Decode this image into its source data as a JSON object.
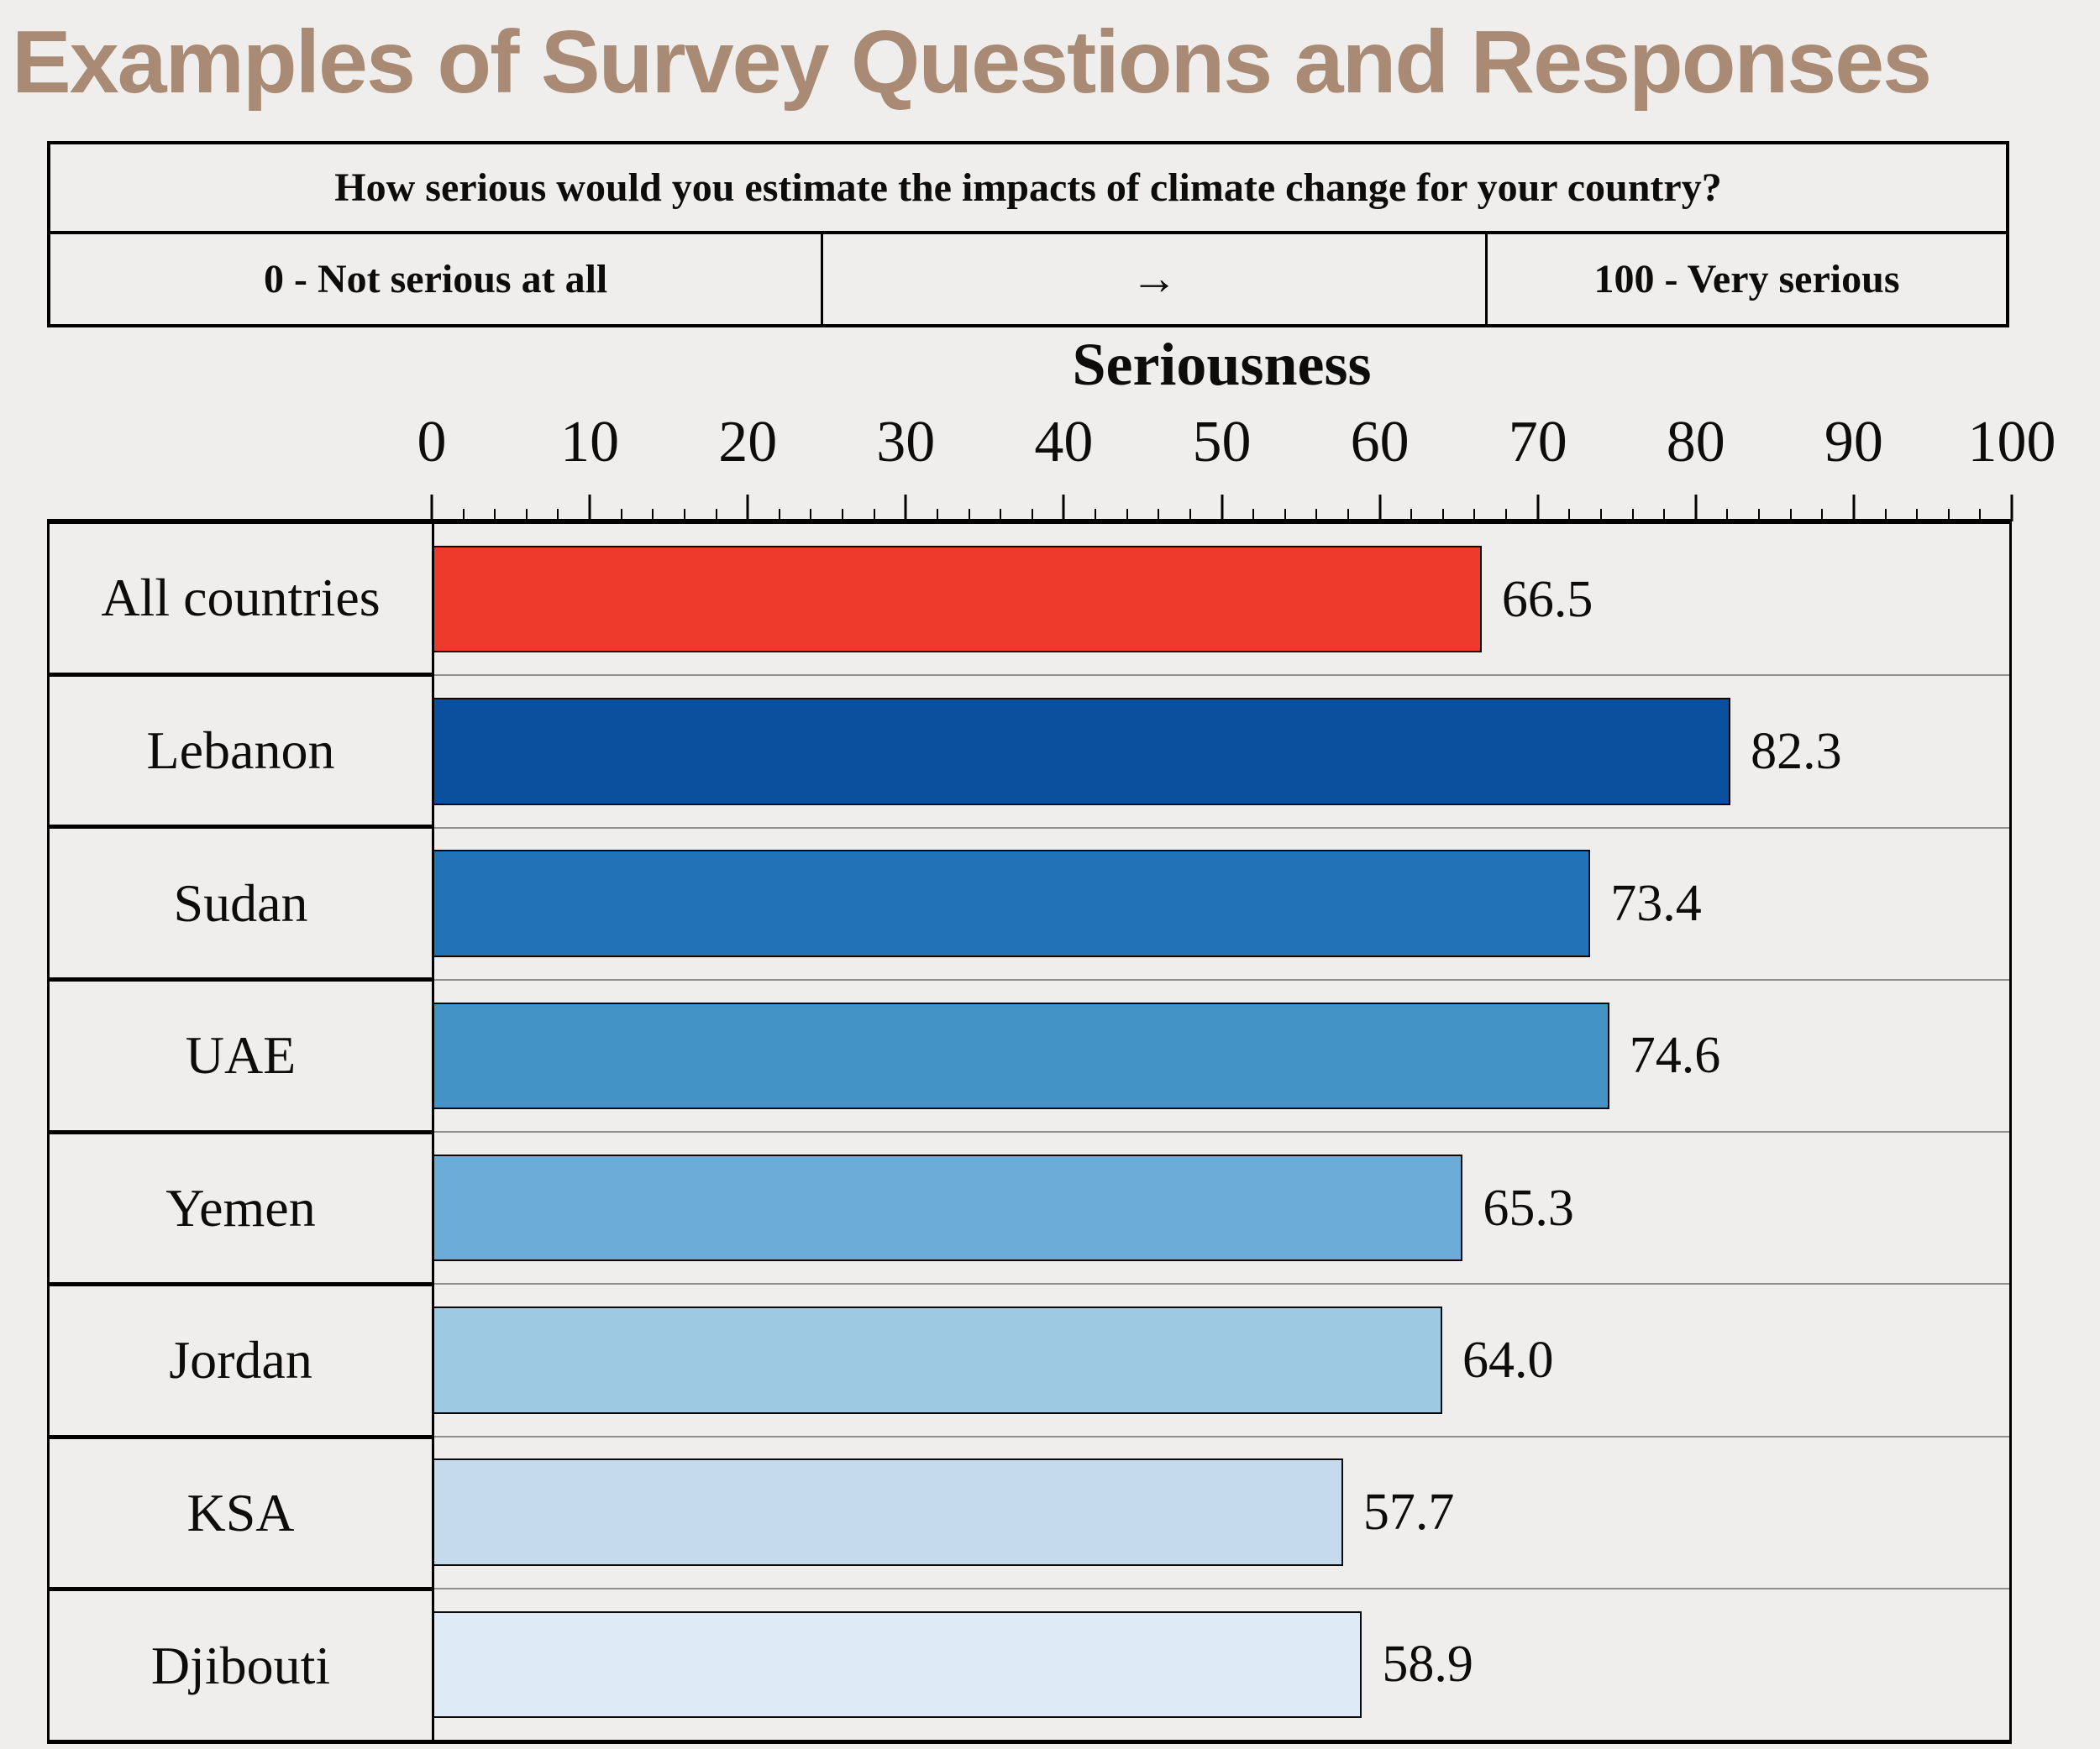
{
  "page": {
    "title": "Examples of Survey Questions and Responses",
    "title_color": "#a98a74",
    "background_color": "#efeeec"
  },
  "survey_box": {
    "question": "How serious would you estimate the impacts of climate change for your country?",
    "min_label": "0 - Not serious at all",
    "arrow_symbol": "→",
    "max_label": "100 - Very serious"
  },
  "chart_data": {
    "type": "bar",
    "orientation": "horizontal",
    "title": "Seriousness",
    "xlabel": "",
    "ylabel": "",
    "xlim": [
      0,
      100
    ],
    "x_major_ticks": [
      0,
      10,
      20,
      30,
      40,
      50,
      60,
      70,
      80,
      90,
      100
    ],
    "x_minor_tick_step": 2,
    "grid": false,
    "value_decimals": 1,
    "categories": [
      "All countries",
      "Lebanon",
      "Sudan",
      "UAE",
      "Yemen",
      "Jordan",
      "KSA",
      "Djibouti"
    ],
    "values": [
      66.5,
      82.3,
      73.4,
      74.6,
      65.3,
      64.0,
      57.7,
      58.9
    ],
    "bar_colors": [
      "#ee3a2b",
      "#0b509e",
      "#2273b5",
      "#4493c7",
      "#6badd8",
      "#9dc9e3",
      "#c6daee",
      "#deebf7"
    ],
    "bar_border_color": "#0a0a0a",
    "row_separator_color": "#8f8f8f",
    "axis_color": "#000000"
  }
}
